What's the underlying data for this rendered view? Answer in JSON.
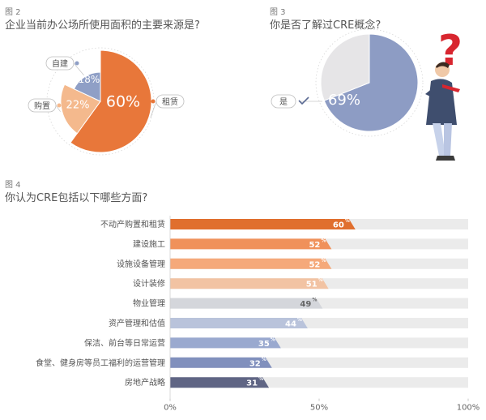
{
  "figures": {
    "fig2": {
      "number": "图 2",
      "title": "企业当前办公场所使用面积的主要来源是?"
    },
    "fig3": {
      "number": "图 3",
      "title": "你是否了解过CRE概念?"
    },
    "fig4": {
      "number": "图 4",
      "title": "你认为CRE包括以下哪些方面?"
    }
  },
  "chart_data": [
    {
      "type": "pie",
      "categories": [
        "租赁",
        "购置",
        "自建"
      ],
      "values": [
        60,
        22,
        18
      ],
      "value_labels": [
        "60%",
        "22%",
        "18%"
      ],
      "colors": [
        "#e8773a",
        "#f4b98d",
        "#8f9fc6"
      ]
    },
    {
      "type": "pie",
      "categories": [
        "是",
        ""
      ],
      "values": [
        69,
        31
      ],
      "value_labels": [
        "69%",
        ""
      ],
      "colors": [
        "#8d9cc4",
        "#e6e5e7"
      ],
      "decoration": "question-mark-person"
    },
    {
      "type": "bar",
      "orientation": "horizontal",
      "categories": [
        "不动产购置和租赁",
        "建设施工",
        "设施设备管理",
        "设计装修",
        "物业管理",
        "资产管理和估值",
        "保洁、前台等日常运营",
        "食堂、健身房等员工福利的运营管理",
        "房地产战略"
      ],
      "values": [
        60,
        52,
        52,
        51,
        49,
        44,
        35,
        32,
        31
      ],
      "value_labels": [
        "60",
        "52",
        "52",
        "51",
        "49",
        "44",
        "35",
        "32",
        "31"
      ],
      "value_suffix": "%",
      "colors": [
        "#e06f2e",
        "#f0915a",
        "#f5a97a",
        "#f2c3a3",
        "#d4d6db",
        "#b9c3db",
        "#9aa9cf",
        "#8190bd",
        "#5f6584"
      ],
      "track_color": "#ebebeb",
      "xlim": [
        0,
        100
      ],
      "xticks": [
        "0%",
        "50%",
        "100%"
      ],
      "xtick_values": [
        0,
        50,
        100
      ]
    }
  ]
}
